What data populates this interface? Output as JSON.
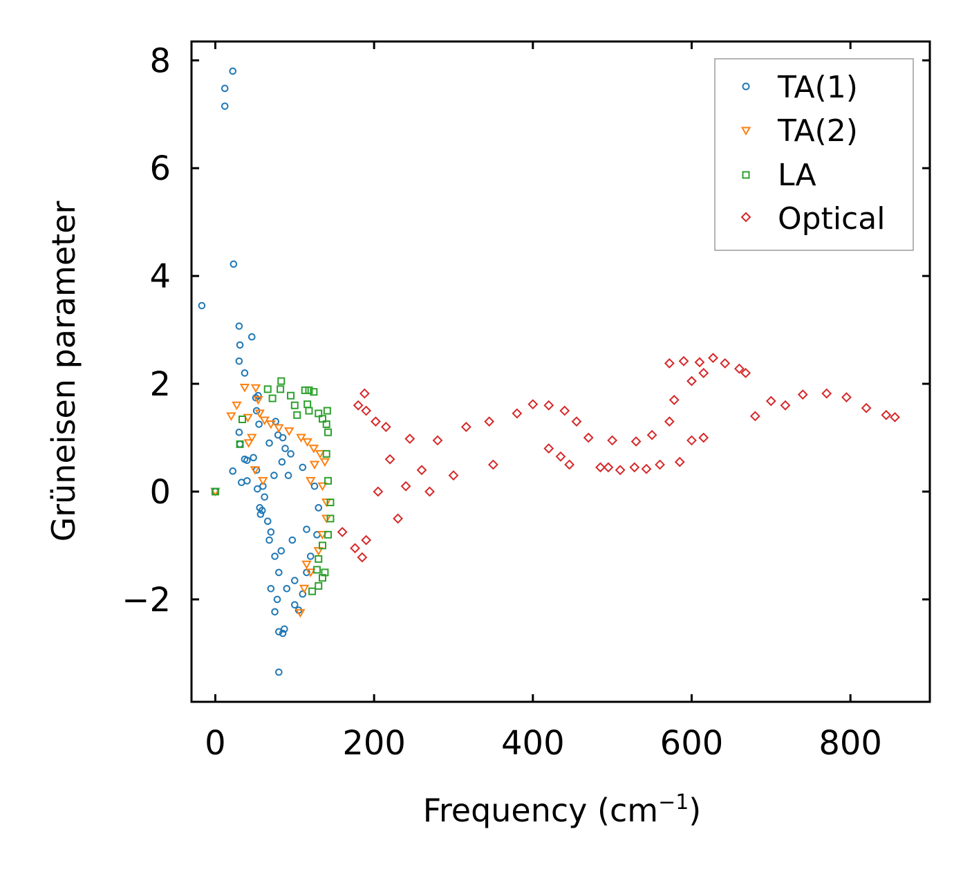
{
  "chart_data": {
    "type": "scatter",
    "title": "",
    "xlabel": "Frequency (cm",
    "xlabel_superscript": "−1",
    "xlabel_close": ")",
    "ylabel": "Grüneisen parameter",
    "xlim": [
      -30,
      900
    ],
    "ylim": [
      -3.9,
      8.35
    ],
    "xticks": [
      0,
      200,
      400,
      600,
      800
    ],
    "xtick_labels": [
      "0",
      "200",
      "400",
      "600",
      "800"
    ],
    "yticks": [
      -2,
      0,
      2,
      4,
      6,
      8
    ],
    "ytick_labels": [
      "−2",
      "0",
      "2",
      "4",
      "6",
      "8"
    ],
    "grid": false,
    "legend_position": "top-right",
    "series": [
      {
        "name": "TA(1)",
        "marker": "circle",
        "color": "#1f77b4",
        "points": [
          [
            -17,
            3.45
          ],
          [
            12,
            7.15
          ],
          [
            12,
            7.48
          ],
          [
            22,
            7.8
          ],
          [
            23,
            4.22
          ],
          [
            30,
            3.07
          ],
          [
            31,
            2.72
          ],
          [
            30,
            2.42
          ],
          [
            37,
            2.2
          ],
          [
            46,
            2.87
          ],
          [
            51,
            1.74
          ],
          [
            54,
            1.78
          ],
          [
            52,
            1.5
          ],
          [
            55,
            1.25
          ],
          [
            31,
            0.88
          ],
          [
            30,
            1.1
          ],
          [
            37,
            0.6
          ],
          [
            40,
            0.58
          ],
          [
            40,
            0.2
          ],
          [
            33,
            0.17
          ],
          [
            22,
            0.38
          ],
          [
            48,
            0.63
          ],
          [
            52,
            0.4
          ],
          [
            53,
            0.05
          ],
          [
            56,
            -0.3
          ],
          [
            59,
            -0.35
          ],
          [
            57,
            -0.42
          ],
          [
            66,
            -0.55
          ],
          [
            70,
            -0.75
          ],
          [
            68,
            -0.9
          ],
          [
            75,
            -1.2
          ],
          [
            80,
            -1.5
          ],
          [
            70,
            -1.8
          ],
          [
            78,
            -2.0
          ],
          [
            75,
            -2.23
          ],
          [
            80,
            -2.6
          ],
          [
            87,
            -2.55
          ],
          [
            85,
            -2.63
          ],
          [
            80,
            -3.35
          ],
          [
            100,
            -2.1
          ],
          [
            110,
            -1.9
          ],
          [
            105,
            -2.2
          ],
          [
            76,
            1.3
          ],
          [
            85,
            1.0
          ],
          [
            95,
            0.7
          ],
          [
            110,
            0.45
          ],
          [
            125,
            0.1
          ],
          [
            130,
            -0.3
          ],
          [
            128,
            -0.8
          ],
          [
            120,
            -1.2
          ],
          [
            115,
            -1.5
          ],
          [
            100,
            -1.65
          ],
          [
            90,
            -1.8
          ],
          [
            88,
            0.8
          ],
          [
            92,
            0.3
          ],
          [
            97,
            -0.9
          ],
          [
            83,
            -1.1
          ],
          [
            79,
            1.05
          ],
          [
            68,
            0.9
          ],
          [
            60,
            0.1
          ],
          [
            62,
            -0.1
          ],
          [
            74,
            0.3
          ],
          [
            84,
            0.55
          ],
          [
            115,
            -0.7
          ],
          [
            0,
            0.0
          ]
        ]
      },
      {
        "name": "TA(2)",
        "marker": "triangle",
        "color": "#ff7f0e",
        "points": [
          [
            20,
            1.4
          ],
          [
            27,
            1.6
          ],
          [
            37,
            1.93
          ],
          [
            41,
            1.37
          ],
          [
            51,
            1.92
          ],
          [
            54,
            1.7
          ],
          [
            56,
            1.45
          ],
          [
            62,
            1.32
          ],
          [
            70,
            1.25
          ],
          [
            80,
            1.18
          ],
          [
            93,
            1.12
          ],
          [
            108,
            1.0
          ],
          [
            116,
            0.92
          ],
          [
            124,
            0.8
          ],
          [
            132,
            0.7
          ],
          [
            138,
            0.55
          ],
          [
            46,
            1.0
          ],
          [
            42,
            0.9
          ],
          [
            50,
            0.4
          ],
          [
            60,
            0.2
          ],
          [
            120,
            0.2
          ],
          [
            135,
            0.1
          ],
          [
            140,
            -0.2
          ],
          [
            140,
            -0.5
          ],
          [
            135,
            -0.8
          ],
          [
            130,
            -1.1
          ],
          [
            120,
            -1.5
          ],
          [
            112,
            -1.8
          ],
          [
            107,
            -2.25
          ],
          [
            115,
            -1.35
          ],
          [
            125,
            0.5
          ],
          [
            0,
            0.0
          ]
        ]
      },
      {
        "name": "LA",
        "marker": "square",
        "color": "#2ca02c",
        "points": [
          [
            0,
            0.0
          ],
          [
            31,
            0.88
          ],
          [
            34,
            1.34
          ],
          [
            66,
            1.9
          ],
          [
            72,
            1.73
          ],
          [
            82,
            1.9
          ],
          [
            83,
            2.05
          ],
          [
            95,
            1.78
          ],
          [
            100,
            1.6
          ],
          [
            103,
            1.42
          ],
          [
            113,
            1.88
          ],
          [
            118,
            1.88
          ],
          [
            124,
            1.85
          ],
          [
            116,
            1.62
          ],
          [
            118,
            1.5
          ],
          [
            130,
            1.45
          ],
          [
            135,
            1.35
          ],
          [
            140,
            1.25
          ],
          [
            142,
            1.1
          ],
          [
            140,
            0.7
          ],
          [
            142,
            0.2
          ],
          [
            145,
            -0.2
          ],
          [
            145,
            -0.5
          ],
          [
            142,
            -0.8
          ],
          [
            135,
            -1.0
          ],
          [
            130,
            -1.25
          ],
          [
            128,
            -1.45
          ],
          [
            135,
            -1.6
          ],
          [
            130,
            -1.75
          ],
          [
            122,
            -1.85
          ],
          [
            138,
            -1.5
          ],
          [
            141,
            1.5
          ]
        ]
      },
      {
        "name": "Optical",
        "marker": "diamond",
        "color": "#d62728",
        "points": [
          [
            188,
            1.82
          ],
          [
            180,
            1.6
          ],
          [
            190,
            1.5
          ],
          [
            202,
            1.3
          ],
          [
            215,
            1.2
          ],
          [
            245,
            0.98
          ],
          [
            280,
            0.95
          ],
          [
            316,
            1.2
          ],
          [
            345,
            1.3
          ],
          [
            380,
            1.45
          ],
          [
            400,
            1.62
          ],
          [
            420,
            1.6
          ],
          [
            440,
            1.5
          ],
          [
            455,
            1.3
          ],
          [
            470,
            1.0
          ],
          [
            500,
            0.95
          ],
          [
            530,
            0.93
          ],
          [
            550,
            1.05
          ],
          [
            572,
            1.3
          ],
          [
            578,
            1.7
          ],
          [
            572,
            2.38
          ],
          [
            590,
            2.42
          ],
          [
            610,
            2.4
          ],
          [
            627,
            2.48
          ],
          [
            642,
            2.38
          ],
          [
            660,
            2.28
          ],
          [
            668,
            2.2
          ],
          [
            600,
            2.05
          ],
          [
            615,
            2.2
          ],
          [
            680,
            1.4
          ],
          [
            700,
            1.68
          ],
          [
            718,
            1.6
          ],
          [
            740,
            1.8
          ],
          [
            770,
            1.82
          ],
          [
            795,
            1.75
          ],
          [
            820,
            1.55
          ],
          [
            845,
            1.42
          ],
          [
            856,
            1.38
          ],
          [
            190,
            -0.9
          ],
          [
            185,
            -1.22
          ],
          [
            176,
            -1.05
          ],
          [
            160,
            -0.75
          ],
          [
            230,
            -0.5
          ],
          [
            270,
            0.0
          ],
          [
            300,
            0.3
          ],
          [
            350,
            0.5
          ],
          [
            420,
            0.8
          ],
          [
            435,
            0.65
          ],
          [
            446,
            0.5
          ],
          [
            485,
            0.45
          ],
          [
            495,
            0.45
          ],
          [
            510,
            0.4
          ],
          [
            528,
            0.45
          ],
          [
            543,
            0.42
          ],
          [
            560,
            0.5
          ],
          [
            585,
            0.55
          ],
          [
            600,
            0.95
          ],
          [
            615,
            1.0
          ],
          [
            205,
            0.0
          ],
          [
            220,
            0.6
          ],
          [
            240,
            0.1
          ],
          [
            260,
            0.4
          ]
        ]
      }
    ]
  }
}
